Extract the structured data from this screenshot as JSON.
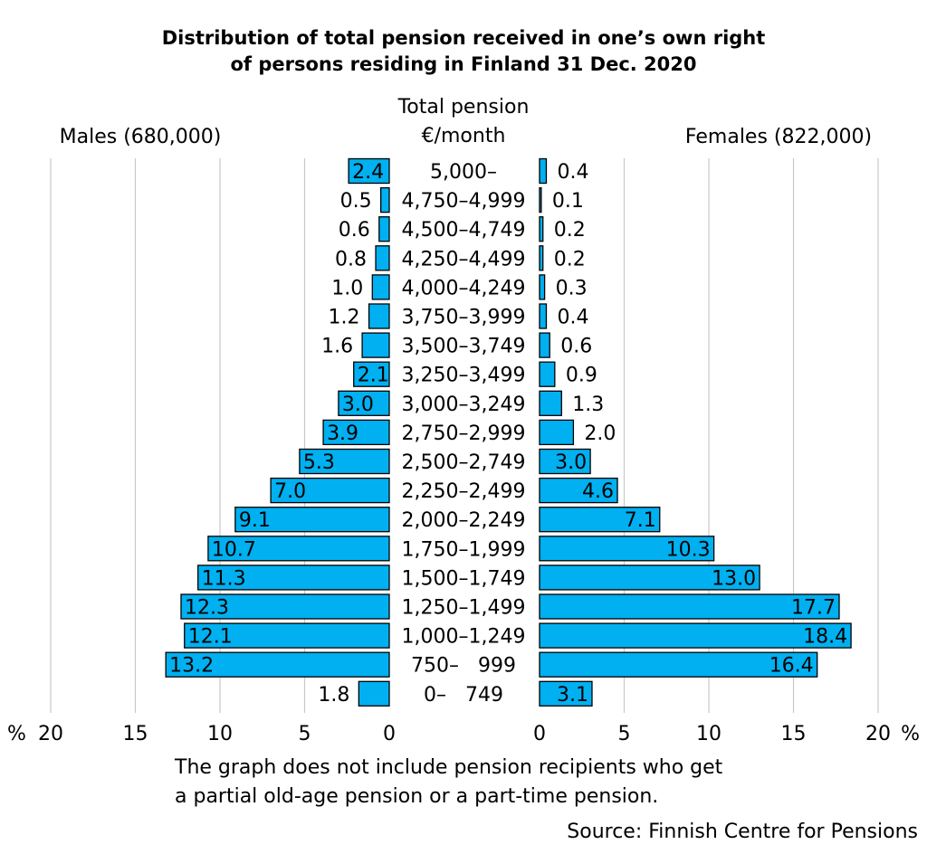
{
  "title_line1": "Distribution of total pension received in one’s own right",
  "title_line2": "of persons residing in Finland 31 Dec. 2020",
  "note_line1": "The graph does not include pension recipients who get",
  "note_line2": "a partial old-age pension or a part-time pension.",
  "source": "Source: Finnish Centre for Pensions",
  "colors": {
    "bar": "#00B0F0",
    "grid": "#c8c8c8",
    "outline": "#000000"
  },
  "chart_data": {
    "type": "bar",
    "orientation": "horizontal-population-pyramid",
    "category_header": [
      "Total pension",
      "€/month"
    ],
    "left_label": "Males (680,000)",
    "right_label": "Females (822,000)",
    "categories": [
      "5,000–",
      "4,750–4,999",
      "4,500–4,749",
      "4,250–4,499",
      "4,000–4,249",
      "3,750–3,999",
      "3,500–3,749",
      "3,250–3,499",
      "3,000–3,249",
      "2,750–2,999",
      "2,500–2,749",
      "2,250–2,499",
      "2,000–2,249",
      "1,750–1,999",
      "1,500–1,749",
      "1,250–1,499",
      "1,000–1,249",
      "750–   999",
      "0–   749"
    ],
    "series": [
      {
        "name": "Males (680,000)",
        "values": [
          2.4,
          0.5,
          0.6,
          0.8,
          1.0,
          1.2,
          1.6,
          2.1,
          3.0,
          3.9,
          5.3,
          7.0,
          9.1,
          10.7,
          11.3,
          12.3,
          12.1,
          13.2,
          1.8
        ],
        "labels": [
          "2.4",
          "0.5",
          "0.6",
          "0.8",
          "1.0",
          "1.2",
          "1.6",
          "2.1",
          "3.0",
          "3.9",
          "5.3",
          "7.0",
          "9.1",
          "10.7",
          "11.3",
          "12.3",
          "12.1",
          "13.2",
          "1.8"
        ]
      },
      {
        "name": "Females (822,000)",
        "values": [
          0.4,
          0.1,
          0.2,
          0.2,
          0.3,
          0.4,
          0.6,
          0.9,
          1.3,
          2.0,
          3.0,
          4.6,
          7.1,
          10.3,
          13.0,
          17.7,
          18.4,
          16.4,
          3.1
        ],
        "labels": [
          "0.4",
          "0.1",
          "0.2",
          "0.2",
          "0.3",
          "0.4",
          "0.6",
          "0.9",
          "1.3",
          "2.0",
          "3.0",
          "4.6",
          "7.1",
          "10.3",
          "13.0",
          "17.7",
          "18.4",
          "16.4",
          "3.1"
        ]
      }
    ],
    "xlim": [
      0,
      20
    ],
    "ticks": [
      0,
      5,
      10,
      15,
      20
    ],
    "tick_labels_left": [
      "0",
      "5",
      "10",
      "15",
      "20"
    ],
    "tick_labels_right": [
      "0",
      "5",
      "10",
      "15",
      "20"
    ],
    "unit_label": "%",
    "grid": true
  }
}
